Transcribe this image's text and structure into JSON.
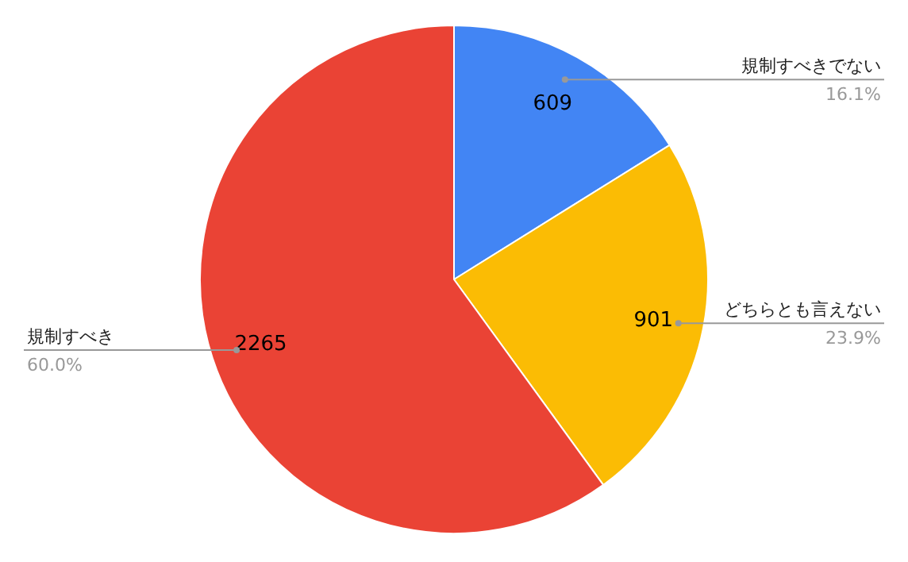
{
  "chart_data": {
    "type": "pie",
    "categories": [
      "規制すべきでない",
      "どちらとも言えない",
      "規制すべき"
    ],
    "values": [
      609,
      901,
      2265
    ],
    "colors": [
      "#4285f4",
      "#fbbc04",
      "#ea4335"
    ],
    "data_labels": true,
    "annotations": [
      {
        "text": "16.1%",
        "x": "規制すべきでない"
      },
      {
        "text": "23.9%",
        "x": "どちらとも言えない"
      },
      {
        "text": "60.0%",
        "x": "規制すべき"
      }
    ]
  }
}
